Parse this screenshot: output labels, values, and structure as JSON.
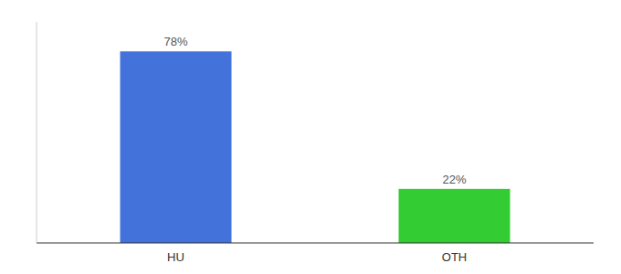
{
  "chart_data": {
    "type": "bar",
    "categories": [
      "HU",
      "OTH"
    ],
    "values": [
      78,
      22
    ],
    "value_labels": [
      "78%",
      "22%"
    ],
    "colors": [
      "#4472db",
      "#33cc33"
    ],
    "ylim": [
      0,
      90
    ],
    "data_labels": true,
    "tick_labels": "x",
    "grid": false
  }
}
